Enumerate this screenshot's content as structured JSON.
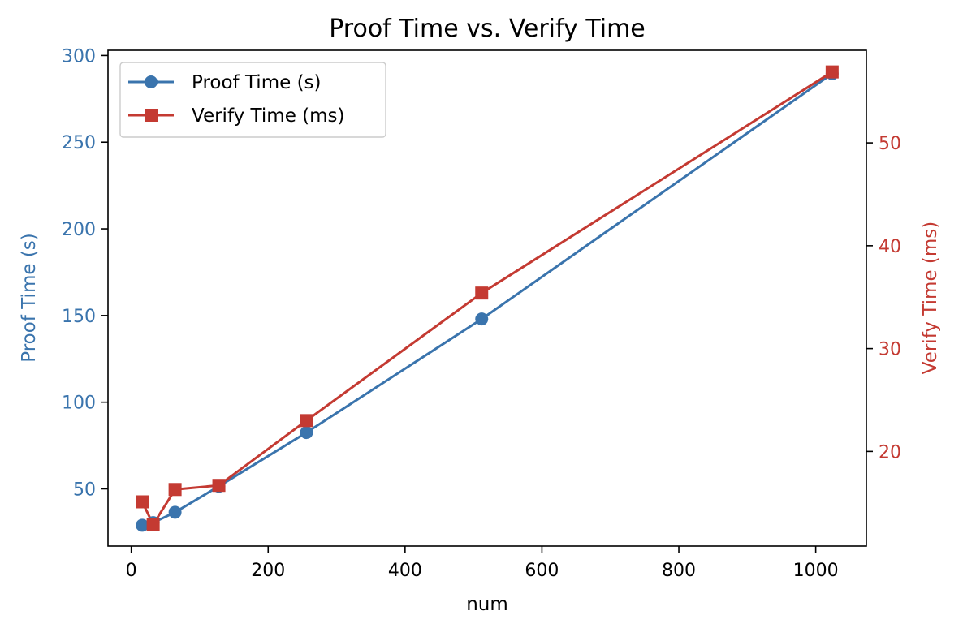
{
  "colors": {
    "proof": "#3a74ad",
    "verify": "#c43a32",
    "axis": "#000000",
    "background": "#ffffff"
  },
  "chart_data": {
    "type": "line",
    "title": "Proof Time vs. Verify Time",
    "xlabel": "num",
    "x": [
      16,
      32,
      64,
      128,
      256,
      512,
      1024
    ],
    "xlim": [
      -34,
      1074
    ],
    "xticks": [
      0,
      200,
      400,
      600,
      800,
      1000
    ],
    "y_left": {
      "label": "Proof Time (s)",
      "lim": [
        17,
        303
      ],
      "ticks": [
        50,
        100,
        150,
        200,
        250,
        300
      ]
    },
    "y_right": {
      "label": "Verify Time (ms)",
      "lim": [
        10.8,
        59.0
      ],
      "ticks": [
        20,
        30,
        40,
        50
      ]
    },
    "series": [
      {
        "name": "Proof Time (s)",
        "axis": "left",
        "marker": "circle",
        "color": "#3a74ad",
        "values": [
          29,
          30.5,
          36.5,
          51.5,
          82.5,
          148,
          289.5
        ]
      },
      {
        "name": "Verify Time (ms)",
        "axis": "right",
        "marker": "square",
        "color": "#c43a32",
        "values": [
          15.1,
          12.9,
          16.3,
          16.7,
          23.0,
          35.4,
          56.9
        ]
      }
    ],
    "legend": {
      "position": "top-left"
    },
    "grid": false
  }
}
